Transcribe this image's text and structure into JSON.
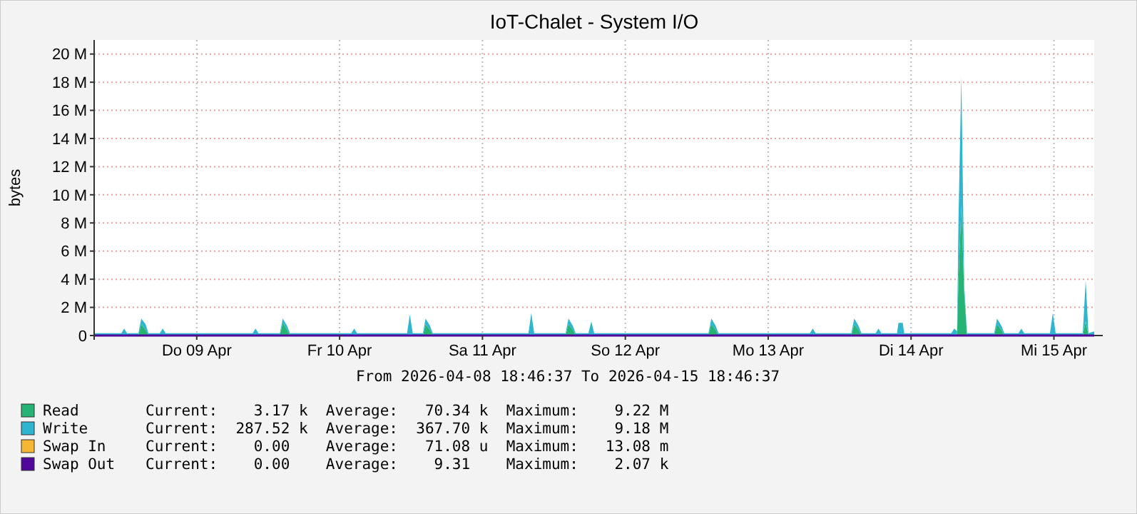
{
  "chart_data": {
    "type": "area",
    "stacked": true,
    "title": "IoT-Chalet - System I/O",
    "ylabel": "bytes",
    "x": [
      "2026-04-08T18:46",
      "2026-04-08T23:20",
      "2026-04-08T23:49",
      "2026-04-09T00:17",
      "2026-04-09T02:12",
      "2026-04-09T02:41",
      "2026-04-09T03:24",
      "2026-04-09T03:53",
      "2026-04-09T05:48",
      "2026-04-09T06:17",
      "2026-04-09T06:46",
      "2026-04-09T21:24",
      "2026-04-09T21:53",
      "2026-04-09T22:22",
      "2026-04-10T01:58",
      "2026-04-10T02:27",
      "2026-04-10T03:10",
      "2026-04-10T03:39",
      "2026-04-10T13:58",
      "2026-04-10T14:27",
      "2026-04-10T14:56",
      "2026-04-10T23:20",
      "2026-04-10T23:48",
      "2026-04-11T00:17",
      "2026-04-11T02:00",
      "2026-04-11T02:27",
      "2026-04-11T03:10",
      "2026-04-11T03:39",
      "2026-04-11T19:44",
      "2026-04-11T20:12",
      "2026-04-11T20:41",
      "2026-04-12T01:58",
      "2026-04-12T02:27",
      "2026-04-12T03:10",
      "2026-04-12T03:39",
      "2026-04-12T05:48",
      "2026-04-12T06:17",
      "2026-04-12T06:46",
      "2026-04-13T01:58",
      "2026-04-13T02:27",
      "2026-04-13T03:10",
      "2026-04-13T03:39",
      "2026-04-13T19:00",
      "2026-04-13T19:29",
      "2026-04-13T19:58",
      "2026-04-14T01:58",
      "2026-04-14T02:27",
      "2026-04-14T03:10",
      "2026-04-14T03:39",
      "2026-04-14T06:03",
      "2026-04-14T06:32",
      "2026-04-14T07:00",
      "2026-04-14T09:39",
      "2026-04-14T09:53",
      "2026-04-14T10:36",
      "2026-04-14T10:51",
      "2026-04-14T18:46",
      "2026-04-14T19:15",
      "2026-04-14T19:44",
      "2026-04-14T19:58",
      "2026-04-14T20:27",
      "2026-04-14T20:56",
      "2026-04-14T21:24",
      "2026-04-15T01:58",
      "2026-04-15T02:27",
      "2026-04-15T03:10",
      "2026-04-15T03:39",
      "2026-04-15T06:03",
      "2026-04-15T06:32",
      "2026-04-15T07:00",
      "2026-04-15T11:20",
      "2026-04-15T11:49",
      "2026-04-15T12:17",
      "2026-04-15T16:51",
      "2026-04-15T17:20",
      "2026-04-15T17:48",
      "2026-04-15T18:46"
    ],
    "series": [
      {
        "name": "Read",
        "color": "#27b373",
        "values": [
          20000,
          20000,
          50000,
          20000,
          20000,
          800000,
          400000,
          20000,
          20000,
          50000,
          20000,
          20000,
          50000,
          20000,
          20000,
          900000,
          400000,
          20000,
          20000,
          50000,
          20000,
          20000,
          50000,
          20000,
          20000,
          800000,
          400000,
          20000,
          20000,
          50000,
          20000,
          20000,
          800000,
          400000,
          20000,
          20000,
          50000,
          20000,
          20000,
          800000,
          400000,
          20000,
          20000,
          50000,
          20000,
          20000,
          800000,
          400000,
          20000,
          20000,
          50000,
          20000,
          20000,
          50000,
          50000,
          20000,
          20000,
          50000,
          100000,
          4000000,
          9220000,
          3000000,
          20000,
          20000,
          800000,
          400000,
          20000,
          20000,
          50000,
          20000,
          20000,
          50000,
          20000,
          20000,
          1000000,
          20000,
          3170
        ]
      },
      {
        "name": "Write",
        "color": "#2eb5d0",
        "values": [
          150000,
          150000,
          450000,
          150000,
          150000,
          400000,
          400000,
          150000,
          150000,
          450000,
          150000,
          150000,
          450000,
          150000,
          150000,
          300000,
          300000,
          150000,
          150000,
          450000,
          150000,
          150000,
          1450000,
          150000,
          150000,
          400000,
          300000,
          150000,
          150000,
          1550000,
          150000,
          150000,
          400000,
          300000,
          150000,
          150000,
          950000,
          150000,
          150000,
          400000,
          300000,
          150000,
          150000,
          450000,
          150000,
          150000,
          400000,
          300000,
          150000,
          150000,
          450000,
          150000,
          150000,
          850000,
          850000,
          150000,
          150000,
          450000,
          200000,
          4200000,
          9180000,
          500000,
          150000,
          150000,
          400000,
          300000,
          150000,
          150000,
          450000,
          150000,
          150000,
          1550000,
          150000,
          150000,
          2900000,
          150000,
          287520
        ]
      },
      {
        "name": "Swap In",
        "type": "line",
        "color": "#f5b731",
        "values": [
          null,
          null,
          null,
          null,
          null,
          null,
          null,
          null,
          null,
          null,
          null,
          null,
          null,
          null,
          null,
          null,
          null,
          null,
          null,
          null,
          null,
          null,
          null,
          null,
          null,
          null,
          null,
          null,
          null,
          null,
          null,
          null,
          null,
          null,
          null,
          null,
          null,
          null,
          null,
          null,
          null,
          null,
          null,
          null,
          null,
          null,
          null,
          null,
          null,
          null,
          null,
          null,
          null,
          null,
          null,
          null,
          null,
          null,
          null,
          null,
          null,
          null,
          null,
          null,
          null,
          null,
          null,
          null,
          null,
          null,
          null,
          null,
          null,
          null,
          null,
          null,
          null
        ]
      },
      {
        "name": "Swap Out",
        "type": "line",
        "color": "#52079c",
        "values": [
          0,
          0,
          0,
          0,
          0,
          0,
          0,
          0,
          0,
          0,
          0,
          0,
          0,
          0,
          0,
          0,
          0,
          0,
          0,
          0,
          0,
          0,
          0,
          0,
          0,
          0,
          0,
          0,
          0,
          0,
          0,
          0,
          0,
          0,
          0,
          0,
          0,
          0,
          0,
          0,
          0,
          0,
          0,
          0,
          0,
          0,
          0,
          0,
          0,
          0,
          0,
          0,
          0,
          0,
          0,
          0,
          0,
          0,
          0,
          0,
          0,
          0,
          0,
          0,
          0,
          0,
          0,
          0,
          0,
          0,
          0,
          0,
          0,
          0,
          0,
          0,
          0
        ]
      }
    ],
    "xlim": [
      "2026-04-08T18:46",
      "2026-04-15T18:46"
    ],
    "xticks": [
      {
        "value": "2026-04-09T12:00",
        "label": "Do 09 Apr"
      },
      {
        "value": "2026-04-10T12:00",
        "label": "Fr 10 Apr"
      },
      {
        "value": "2026-04-11T12:00",
        "label": "Sa 11 Apr"
      },
      {
        "value": "2026-04-12T12:00",
        "label": "So 12 Apr"
      },
      {
        "value": "2026-04-13T12:00",
        "label": "Mo 13 Apr"
      },
      {
        "value": "2026-04-14T12:00",
        "label": "Di 14 Apr"
      },
      {
        "value": "2026-04-15T12:00",
        "label": "Mi 15 Apr"
      }
    ],
    "ylim": [
      0,
      21000000
    ],
    "yticks": [
      {
        "value": 0,
        "label": "0"
      },
      {
        "value": 2000000,
        "label": "2 M"
      },
      {
        "value": 4000000,
        "label": "4 M"
      },
      {
        "value": 6000000,
        "label": "6 M"
      },
      {
        "value": 8000000,
        "label": "8 M"
      },
      {
        "value": 10000000,
        "label": "10 M"
      },
      {
        "value": 12000000,
        "label": "12 M"
      },
      {
        "value": 14000000,
        "label": "14 M"
      },
      {
        "value": 16000000,
        "label": "16 M"
      },
      {
        "value": 18000000,
        "label": "18 M"
      },
      {
        "value": 20000000,
        "label": "20 M"
      }
    ],
    "grid": true,
    "legend": "bottom",
    "annotations": [
      "From 2026-04-08 18:46:37 To 2026-04-15 18:46:37",
      "Current:    3.17 k  Average:   70.34 k  Maximum:    9.22 M",
      "Current:  287.52 k  Average:  367.70 k  Maximum:    9.18 M",
      "Current:    0.00    Average:   71.08 u  Maximum:   13.08 m",
      "Current:    0.00    Average:    9.31    Maximum:    2.07 k"
    ]
  }
}
